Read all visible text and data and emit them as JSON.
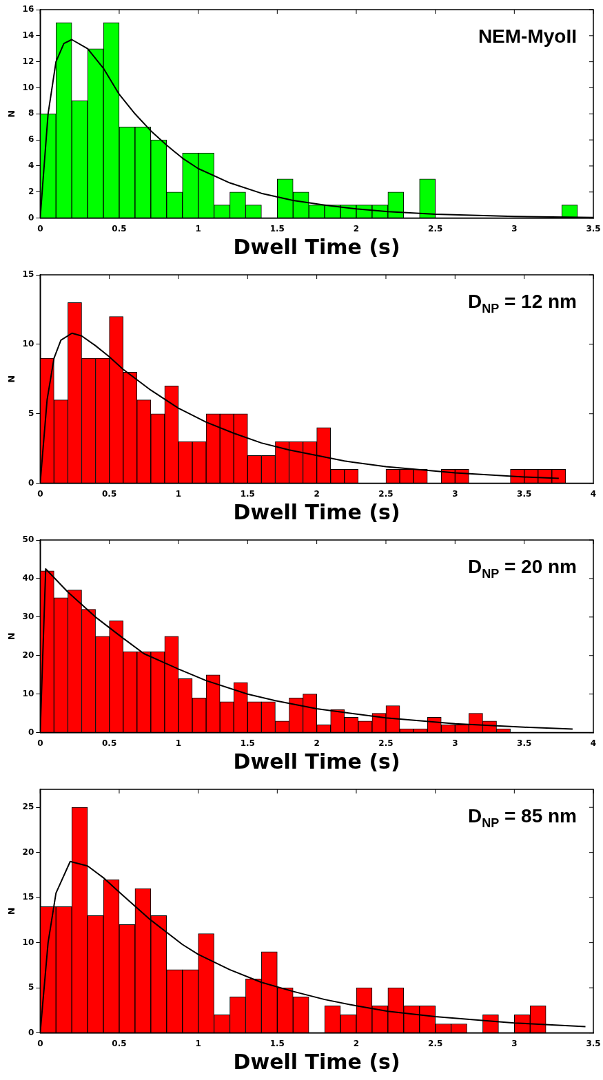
{
  "chart_data": [
    {
      "type": "histogram",
      "title": "NEM-MyoII",
      "xlabel": "Dwell Time (s)",
      "ylabel": "N",
      "color": "#00ff00",
      "xlim": [
        0,
        3.5
      ],
      "xticks": [
        0,
        0.5,
        1,
        1.5,
        2,
        2.5,
        3,
        3.5
      ],
      "ylim": [
        0,
        16
      ],
      "yticks": [
        0,
        2,
        4,
        6,
        8,
        10,
        12,
        14,
        16
      ],
      "grid": false,
      "bins": [
        0,
        0.1,
        0.2,
        0.3,
        0.4,
        0.5,
        0.6,
        0.7,
        0.8,
        0.9,
        1.0,
        1.1,
        1.2,
        1.3,
        1.4,
        1.5,
        1.6,
        1.7,
        1.8,
        1.9,
        2.0,
        2.1,
        2.2,
        2.3,
        2.4,
        2.5,
        2.6,
        2.7,
        2.8,
        2.9,
        3.0,
        3.1,
        3.2,
        3.3,
        3.4,
        3.5
      ],
      "values": [
        8,
        15,
        9,
        13,
        15,
        7,
        7,
        6,
        2,
        5,
        5,
        1,
        2,
        1,
        0,
        3,
        2,
        1,
        1,
        1,
        1,
        1,
        2,
        0,
        3,
        0,
        0,
        0,
        0,
        0,
        0,
        0,
        0,
        1,
        0
      ],
      "series": [
        {
          "type": "line",
          "color": "#000000",
          "x": [
            0,
            0.05,
            0.1,
            0.15,
            0.2,
            0.3,
            0.4,
            0.5,
            0.6,
            0.7,
            0.8,
            0.9,
            1.0,
            1.2,
            1.4,
            1.6,
            1.8,
            2.0,
            2.2,
            2.5,
            3.0,
            3.5
          ],
          "values": [
            0,
            8,
            12,
            13.4,
            13.7,
            13,
            11.5,
            9.5,
            8,
            6.7,
            5.6,
            4.6,
            3.8,
            2.7,
            1.9,
            1.35,
            1.0,
            0.7,
            0.5,
            0.3,
            0.12,
            0.05
          ]
        }
      ]
    },
    {
      "type": "histogram",
      "title": "D$_{NP}$ = 12 nm",
      "xlabel": "Dwell Time (s)",
      "ylabel": "N",
      "color": "#ff0000",
      "xlim": [
        0,
        4
      ],
      "xticks": [
        0,
        0.5,
        1,
        1.5,
        2,
        2.5,
        3,
        3.5,
        4
      ],
      "ylim": [
        0,
        15
      ],
      "yticks": [
        0,
        5,
        10,
        15
      ],
      "grid": false,
      "bins": [
        0,
        0.1,
        0.2,
        0.3,
        0.4,
        0.5,
        0.6,
        0.7,
        0.8,
        0.9,
        1.0,
        1.1,
        1.2,
        1.3,
        1.4,
        1.5,
        1.6,
        1.7,
        1.8,
        1.9,
        2.0,
        2.1,
        2.2,
        2.3,
        2.4,
        2.5,
        2.6,
        2.7,
        2.8,
        2.9,
        3.0,
        3.1,
        3.2,
        3.3,
        3.4,
        3.5,
        3.6,
        3.7,
        3.8
      ],
      "values": [
        9,
        6,
        13,
        9,
        9,
        12,
        8,
        6,
        5,
        7,
        3,
        3,
        5,
        5,
        5,
        2,
        2,
        3,
        3,
        3,
        4,
        1,
        1,
        0,
        0,
        1,
        1,
        1,
        0,
        1,
        1,
        0,
        0,
        0,
        1,
        1,
        1,
        1
      ],
      "series": [
        {
          "type": "line",
          "color": "#000000",
          "x": [
            0,
            0.05,
            0.1,
            0.15,
            0.23,
            0.3,
            0.4,
            0.5,
            0.6,
            0.8,
            1.0,
            1.2,
            1.4,
            1.6,
            1.8,
            2.0,
            2.2,
            2.5,
            3.0,
            3.5,
            3.75
          ],
          "values": [
            0,
            6,
            9,
            10.3,
            10.8,
            10.6,
            9.9,
            9.1,
            8.2,
            6.7,
            5.4,
            4.4,
            3.6,
            2.9,
            2.4,
            2.0,
            1.6,
            1.2,
            0.75,
            0.45,
            0.35
          ]
        }
      ]
    },
    {
      "type": "histogram",
      "title": "D$_{NP}$ = 20 nm",
      "xlabel": "Dwell Time (s)",
      "ylabel": "N",
      "color": "#ff0000",
      "xlim": [
        0,
        4
      ],
      "xticks": [
        0,
        0.5,
        1,
        1.5,
        2,
        2.5,
        3,
        3.5,
        4
      ],
      "ylim": [
        0,
        50
      ],
      "yticks": [
        0,
        10,
        20,
        30,
        40,
        50
      ],
      "grid": false,
      "bins": [
        0,
        0.1,
        0.2,
        0.3,
        0.4,
        0.5,
        0.6,
        0.7,
        0.8,
        0.9,
        1.0,
        1.1,
        1.2,
        1.3,
        1.4,
        1.5,
        1.6,
        1.7,
        1.8,
        1.9,
        2.0,
        2.1,
        2.2,
        2.3,
        2.4,
        2.5,
        2.6,
        2.7,
        2.8,
        2.9,
        3.0,
        3.1,
        3.2,
        3.3,
        3.4
      ],
      "values": [
        42,
        35,
        37,
        32,
        25,
        29,
        21,
        21,
        21,
        25,
        14,
        9,
        15,
        8,
        13,
        8,
        8,
        3,
        9,
        10,
        2,
        6,
        4,
        3,
        5,
        7,
        1,
        1,
        4,
        2,
        2,
        5,
        3,
        1
      ],
      "series": [
        {
          "type": "line",
          "color": "#000000",
          "x": [
            0,
            0.04,
            0.2,
            0.4,
            0.6,
            0.75,
            1.0,
            1.2,
            1.5,
            1.7,
            2.0,
            2.5,
            3.0,
            3.5,
            3.85
          ],
          "values": [
            0,
            42.5,
            36.5,
            30,
            24.5,
            20.5,
            16.5,
            13.5,
            10,
            8.3,
            6.2,
            3.8,
            2.3,
            1.4,
            0.9
          ]
        }
      ]
    },
    {
      "type": "histogram",
      "title": "D$_{NP}$ = 85 nm",
      "xlabel": "Dwell Time (s)",
      "ylabel": "N",
      "color": "#ff0000",
      "xlim": [
        0,
        3.5
      ],
      "xticks": [
        0,
        0.5,
        1,
        1.5,
        2,
        2.5,
        3,
        3.5
      ],
      "ylim": [
        0,
        27
      ],
      "yticks": [
        0,
        5,
        10,
        15,
        20,
        25
      ],
      "grid": false,
      "bins": [
        0,
        0.1,
        0.2,
        0.3,
        0.4,
        0.5,
        0.6,
        0.7,
        0.8,
        0.9,
        1.0,
        1.1,
        1.2,
        1.3,
        1.4,
        1.5,
        1.6,
        1.7,
        1.8,
        1.9,
        2.0,
        2.1,
        2.2,
        2.3,
        2.4,
        2.5,
        2.6,
        2.7,
        2.8,
        2.9,
        3.0,
        3.1,
        3.2
      ],
      "values": [
        14,
        14,
        25,
        13,
        17,
        12,
        16,
        13,
        7,
        7,
        11,
        2,
        4,
        6,
        9,
        5,
        4,
        0,
        3,
        2,
        5,
        3,
        5,
        3,
        3,
        1,
        1,
        0,
        2,
        0,
        2,
        3
      ],
      "series": [
        {
          "type": "line",
          "color": "#000000",
          "x": [
            0,
            0.05,
            0.1,
            0.19,
            0.3,
            0.4,
            0.5,
            0.7,
            0.9,
            1.0,
            1.2,
            1.4,
            1.6,
            1.8,
            2.0,
            2.2,
            2.5,
            3.0,
            3.45
          ],
          "values": [
            0,
            10,
            15.5,
            19,
            18.5,
            17.2,
            15.6,
            12.5,
            9.8,
            8.7,
            7,
            5.6,
            4.6,
            3.7,
            3,
            2.4,
            1.8,
            1.1,
            0.7
          ]
        }
      ]
    }
  ]
}
